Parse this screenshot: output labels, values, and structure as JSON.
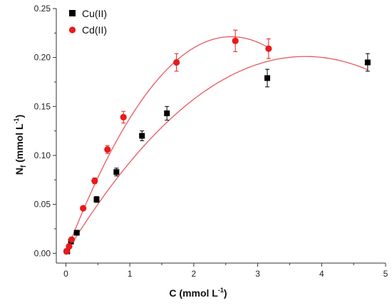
{
  "chart_data": {
    "type": "scatter",
    "xlabel": {
      "main": "C (mmol L",
      "sup": "-1",
      "close": ")"
    },
    "ylabel": {
      "main": "N",
      "sub": "f",
      "mid": " (mmol L",
      "sup": "-1",
      "close": ")"
    },
    "xlim": [
      -0.15,
      5
    ],
    "ylim": [
      -0.01,
      0.25
    ],
    "xticks": [
      0,
      1,
      2,
      3,
      4,
      5
    ],
    "xtick_labels": [
      "0",
      "1",
      "2",
      "3",
      "4",
      "5"
    ],
    "yticks": [
      0.0,
      0.05,
      0.1,
      0.15,
      0.2,
      0.25
    ],
    "ytick_labels": [
      "0.00",
      "0.05",
      "0.10",
      "0.15",
      "0.20",
      "0.25"
    ],
    "grid": false,
    "legend_position": "top-left",
    "series": [
      {
        "name": "Cu(II)",
        "marker": "square",
        "color": "#000000",
        "fit_color": "#e8585f",
        "x": [
          0.02,
          0.08,
          0.17,
          0.48,
          0.79,
          1.19,
          1.58,
          3.15,
          4.72
        ],
        "y": [
          0.002,
          0.012,
          0.021,
          0.055,
          0.083,
          0.12,
          0.143,
          0.179,
          0.195
        ],
        "err": [
          0.002,
          0.002,
          0.002,
          0.003,
          0.004,
          0.005,
          0.007,
          0.009,
          0.009
        ],
        "fit": {
          "a": -0.01433,
          "b": 0.10735,
          "c": 0.0
        }
      },
      {
        "name": "Cd(II)",
        "marker": "circle",
        "color": "#e81a1a",
        "fit_color": "#e8585f",
        "x": [
          0.01,
          0.05,
          0.09,
          0.27,
          0.45,
          0.65,
          0.9,
          1.73,
          2.65,
          3.17
        ],
        "y": [
          0.002,
          0.007,
          0.014,
          0.046,
          0.074,
          0.106,
          0.139,
          0.195,
          0.217,
          0.209
        ],
        "err": [
          0.002,
          0.002,
          0.002,
          0.002,
          0.003,
          0.004,
          0.006,
          0.009,
          0.011,
          0.01
        ],
        "fit": {
          "a": -0.03307,
          "b": 0.17106,
          "c": 0.0
        }
      }
    ]
  }
}
